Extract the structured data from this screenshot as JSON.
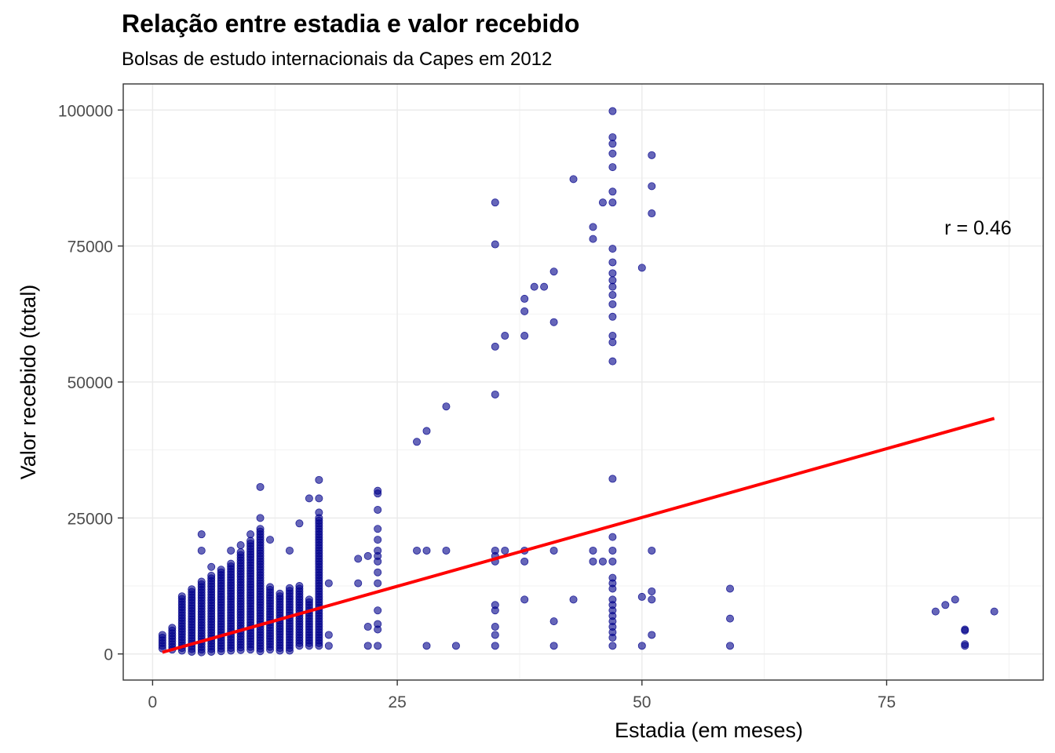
{
  "chart_data": {
    "type": "scatter",
    "title": "Relação entre estadia e valor recebido",
    "subtitle": "Bolsas de estudo internacionais da Capes em 2012",
    "xlabel": "Estadia (em meses)",
    "ylabel": "Valor recebido (total)",
    "xlim": [
      -3,
      91
    ],
    "ylim": [
      -4800,
      104800
    ],
    "x_ticks": [
      0,
      25,
      50,
      75
    ],
    "y_ticks": [
      0,
      25000,
      50000,
      75000,
      100000
    ],
    "x_tick_labels": [
      "0",
      "25",
      "50",
      "75"
    ],
    "y_tick_labels": [
      "0",
      "25000",
      "50000",
      "75000",
      "100000"
    ],
    "grid": true,
    "point_color": "#00008B",
    "line_color": "#FF0000",
    "annotation": {
      "text": "r = 0.46",
      "x": 86,
      "y": 79000
    },
    "trend_line": {
      "x": [
        1,
        86
      ],
      "y": [
        300,
        43300
      ]
    },
    "dense_columns": [
      {
        "x": 1,
        "min": 1000,
        "max": 3800
      },
      {
        "x": 2,
        "min": 800,
        "max": 5200
      },
      {
        "x": 3,
        "min": 600,
        "max": 11000
      },
      {
        "x": 4,
        "min": 400,
        "max": 12000
      },
      {
        "x": 5,
        "min": 300,
        "max": 13500
      },
      {
        "x": 6,
        "min": 400,
        "max": 14500
      },
      {
        "x": 7,
        "min": 500,
        "max": 15500
      },
      {
        "x": 8,
        "min": 600,
        "max": 17000
      },
      {
        "x": 9,
        "min": 700,
        "max": 19000
      },
      {
        "x": 10,
        "min": 800,
        "max": 21000
      },
      {
        "x": 11,
        "min": 500,
        "max": 23000
      },
      {
        "x": 12,
        "min": 800,
        "max": 12500
      },
      {
        "x": 13,
        "min": 600,
        "max": 11500
      },
      {
        "x": 14,
        "min": 600,
        "max": 12500
      },
      {
        "x": 15,
        "min": 1500,
        "max": 12500
      },
      {
        "x": 16,
        "min": 1500,
        "max": 10000
      },
      {
        "x": 17,
        "min": 1500,
        "max": 25000
      }
    ],
    "points": [
      [
        5,
        22000
      ],
      [
        5,
        19000
      ],
      [
        6,
        16000
      ],
      [
        8,
        19000
      ],
      [
        9,
        20000
      ],
      [
        10,
        22000
      ],
      [
        11,
        25000
      ],
      [
        11,
        30700
      ],
      [
        12,
        21000
      ],
      [
        14,
        19000
      ],
      [
        15,
        24000
      ],
      [
        16,
        28600
      ],
      [
        17,
        32000
      ],
      [
        17,
        28600
      ],
      [
        17,
        26000
      ],
      [
        18,
        13000
      ],
      [
        18,
        1500
      ],
      [
        18,
        3500
      ],
      [
        21,
        17500
      ],
      [
        21,
        13000
      ],
      [
        22,
        18000
      ],
      [
        22,
        5000
      ],
      [
        22,
        1500
      ],
      [
        23,
        30000
      ],
      [
        23,
        29500
      ],
      [
        23,
        26500
      ],
      [
        23,
        23000
      ],
      [
        23,
        21000
      ],
      [
        23,
        19000
      ],
      [
        23,
        18000
      ],
      [
        23,
        17000
      ],
      [
        23,
        15000
      ],
      [
        23,
        13000
      ],
      [
        23,
        8000
      ],
      [
        23,
        5500
      ],
      [
        23,
        4500
      ],
      [
        23,
        1500
      ],
      [
        27,
        39000
      ],
      [
        27,
        19000
      ],
      [
        28,
        41000
      ],
      [
        28,
        19000
      ],
      [
        28,
        1500
      ],
      [
        30,
        45500
      ],
      [
        30,
        19000
      ],
      [
        31,
        1500
      ],
      [
        35,
        83000
      ],
      [
        35,
        75300
      ],
      [
        35,
        56500
      ],
      [
        35,
        47700
      ],
      [
        35,
        19000
      ],
      [
        35,
        18000
      ],
      [
        35,
        17000
      ],
      [
        35,
        9000
      ],
      [
        35,
        8000
      ],
      [
        35,
        5000
      ],
      [
        35,
        3500
      ],
      [
        35,
        1500
      ],
      [
        36,
        58500
      ],
      [
        36,
        19000
      ],
      [
        38,
        65300
      ],
      [
        38,
        63000
      ],
      [
        38,
        58500
      ],
      [
        38,
        19000
      ],
      [
        38,
        17000
      ],
      [
        38,
        10000
      ],
      [
        39,
        67500
      ],
      [
        40,
        67500
      ],
      [
        41,
        70300
      ],
      [
        41,
        61000
      ],
      [
        41,
        19000
      ],
      [
        41,
        6000
      ],
      [
        41,
        1500
      ],
      [
        43,
        87300
      ],
      [
        43,
        10000
      ],
      [
        45,
        78500
      ],
      [
        45,
        76300
      ],
      [
        45,
        19000
      ],
      [
        45,
        17000
      ],
      [
        46,
        83000
      ],
      [
        46,
        17000
      ],
      [
        47,
        99800
      ],
      [
        47,
        95000
      ],
      [
        47,
        93800
      ],
      [
        47,
        92000
      ],
      [
        47,
        89500
      ],
      [
        47,
        85000
      ],
      [
        47,
        83000
      ],
      [
        47,
        74500
      ],
      [
        47,
        72000
      ],
      [
        47,
        70000
      ],
      [
        47,
        68700
      ],
      [
        47,
        67500
      ],
      [
        47,
        66000
      ],
      [
        47,
        64300
      ],
      [
        47,
        62000
      ],
      [
        47,
        58500
      ],
      [
        47,
        57300
      ],
      [
        47,
        53800
      ],
      [
        47,
        32200
      ],
      [
        47,
        21500
      ],
      [
        47,
        19000
      ],
      [
        47,
        17000
      ],
      [
        47,
        14000
      ],
      [
        47,
        13000
      ],
      [
        47,
        12000
      ],
      [
        47,
        10000
      ],
      [
        47,
        9000
      ],
      [
        47,
        8000
      ],
      [
        47,
        7000
      ],
      [
        47,
        6000
      ],
      [
        47,
        5000
      ],
      [
        47,
        4000
      ],
      [
        47,
        3000
      ],
      [
        47,
        1500
      ],
      [
        50,
        71000
      ],
      [
        50,
        10500
      ],
      [
        50,
        1500
      ],
      [
        51,
        91700
      ],
      [
        51,
        86000
      ],
      [
        51,
        81000
      ],
      [
        51,
        19000
      ],
      [
        51,
        11500
      ],
      [
        51,
        10000
      ],
      [
        51,
        3500
      ],
      [
        59,
        12000
      ],
      [
        59,
        6500
      ],
      [
        59,
        1500
      ],
      [
        80,
        7800
      ],
      [
        81,
        9000
      ],
      [
        82,
        10000
      ],
      [
        83,
        4500
      ],
      [
        83,
        4300
      ],
      [
        83,
        1800
      ],
      [
        83,
        1500
      ],
      [
        86,
        7800
      ]
    ]
  }
}
